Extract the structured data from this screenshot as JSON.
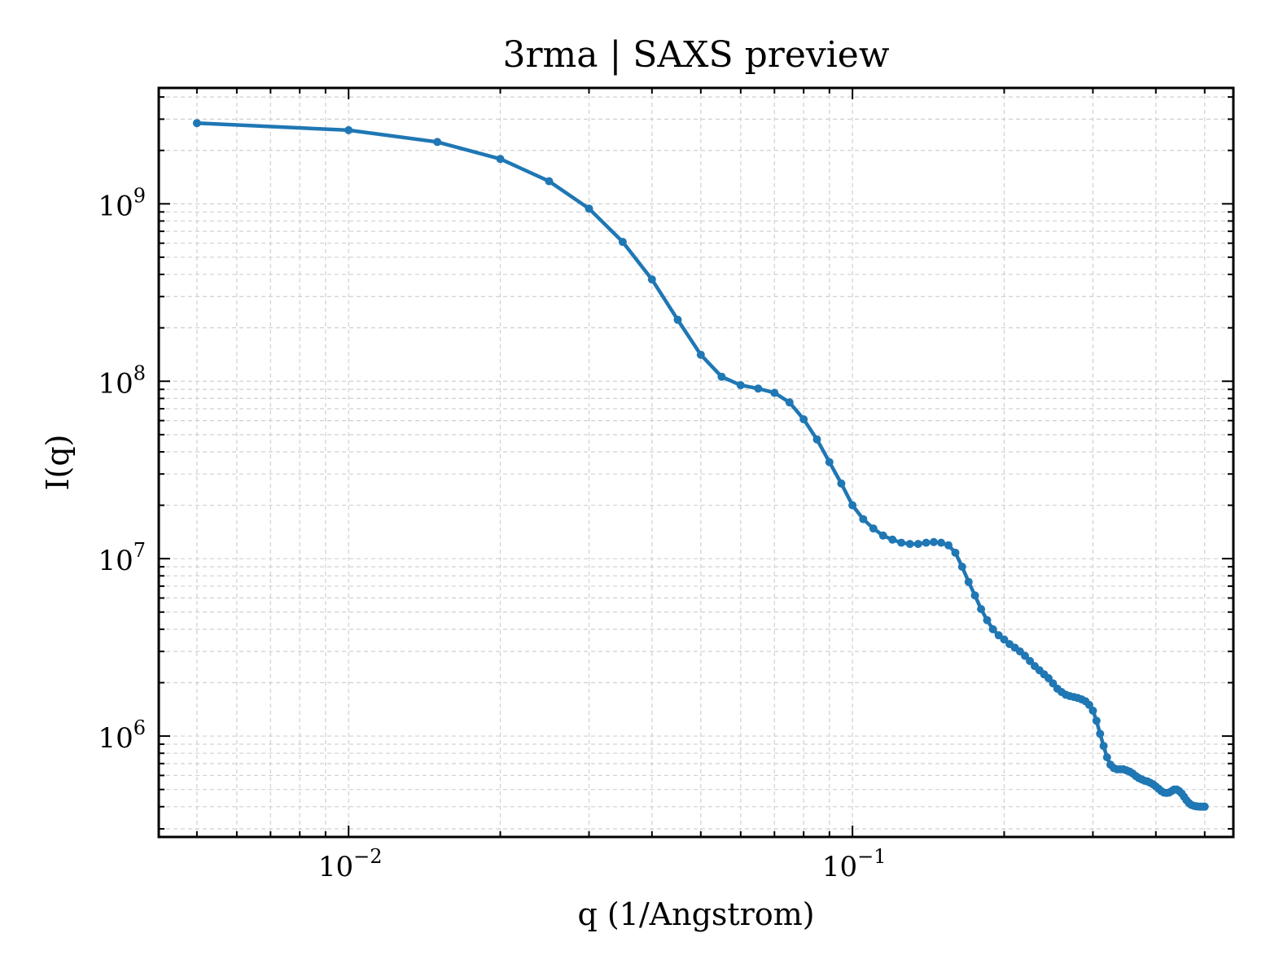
{
  "chart_data": {
    "type": "line",
    "title": "3rma | SAXS preview",
    "xlabel": "q (1/Angstrom)",
    "ylabel": "I(q)",
    "xscale": "log",
    "yscale": "log",
    "xlim": [
      0.0042,
      0.57
    ],
    "ylim": [
      270000,
      4500000000
    ],
    "grid": true,
    "x_ticks": [
      {
        "value": 0.01,
        "base": "10",
        "exp": "−2"
      },
      {
        "value": 0.1,
        "base": "10",
        "exp": "−1"
      }
    ],
    "y_ticks": [
      {
        "value": 1000000,
        "base": "10",
        "exp": "6"
      },
      {
        "value": 10000000,
        "base": "10",
        "exp": "7"
      },
      {
        "value": 100000000,
        "base": "10",
        "exp": "8"
      },
      {
        "value": 1000000000,
        "base": "10",
        "exp": "9"
      }
    ],
    "color": "#1f77b4",
    "series": [
      {
        "x": [
          0.005,
          0.01,
          0.015,
          0.02,
          0.025,
          0.03,
          0.035,
          0.04,
          0.045,
          0.05,
          0.055,
          0.06,
          0.065,
          0.07,
          0.075,
          0.08,
          0.085,
          0.09,
          0.095,
          0.1,
          0.105,
          0.11,
          0.115,
          0.12,
          0.125,
          0.13,
          0.135,
          0.14,
          0.145,
          0.15,
          0.155,
          0.16,
          0.165,
          0.17,
          0.175,
          0.18,
          0.185,
          0.19,
          0.195,
          0.2,
          0.205,
          0.21,
          0.215,
          0.22,
          0.225,
          0.23,
          0.235,
          0.24,
          0.245,
          0.25,
          0.255,
          0.26,
          0.265,
          0.27,
          0.275,
          0.28,
          0.285,
          0.29,
          0.295,
          0.3,
          0.305,
          0.31,
          0.315,
          0.32,
          0.325,
          0.33,
          0.335,
          0.34,
          0.345,
          0.35,
          0.355,
          0.36,
          0.365,
          0.37,
          0.375,
          0.38,
          0.385,
          0.39,
          0.395,
          0.4,
          0.405,
          0.41,
          0.415,
          0.42,
          0.425,
          0.43,
          0.435,
          0.44,
          0.445,
          0.45,
          0.455,
          0.46,
          0.465,
          0.47,
          0.475,
          0.48,
          0.485,
          0.49,
          0.495,
          0.5
        ],
        "values": [
          2850000000,
          2600000000,
          2230000000,
          1790000000,
          1340000000,
          940000000,
          610000000,
          375000000,
          222000000,
          141000000,
          106000000,
          95000000,
          91000000,
          86000000,
          76000000,
          61000000,
          47000000,
          35000000,
          26500000,
          20000000,
          16700000,
          14800000,
          13500000,
          12800000,
          12300000,
          12100000,
          12100000,
          12300000,
          12400000,
          12300000,
          11900000,
          10800000,
          9000000,
          7400000,
          6200000,
          5200000,
          4500000,
          4000000,
          3700000,
          3500000,
          3300000,
          3150000,
          3000000,
          2830000,
          2650000,
          2480000,
          2350000,
          2230000,
          2120000,
          1980000,
          1850000,
          1770000,
          1710000,
          1680000,
          1660000,
          1640000,
          1610000,
          1570000,
          1500000,
          1390000,
          1220000,
          1030000,
          880000,
          760000,
          690000,
          660000,
          650000,
          650000,
          650000,
          640000,
          630000,
          615000,
          595000,
          580000,
          570000,
          560000,
          555000,
          545000,
          535000,
          520000,
          505000,
          490000,
          480000,
          478000,
          480000,
          490000,
          500000,
          500000,
          490000,
          475000,
          455000,
          435000,
          420000,
          410000,
          405000,
          402000,
          401000,
          400000,
          400000,
          400000
        ]
      }
    ]
  }
}
